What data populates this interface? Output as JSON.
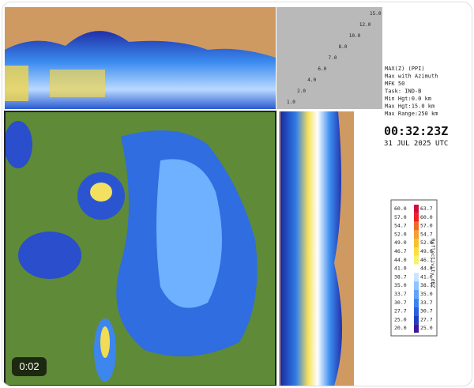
{
  "heights": [
    "1.0",
    "2.0",
    "4.0",
    "6.0",
    "7.0",
    "8.0",
    "10.0",
    "12.0",
    "15.0"
  ],
  "info": {
    "lines": [
      "MAX(Z) (PPI)",
      "Max with Azimuth",
      "MFK 50",
      "Task: IND-B",
      "Min Hgt:0.0 km",
      "Max Hgt:15.0 km",
      "Max Range:250 km"
    ],
    "time": "00:32:23Z",
    "date": "31 JUL 2025 UTC"
  },
  "legend": {
    "title": "Reflectivity dBZ",
    "rows": [
      {
        "low": "60.0",
        "high": "63.7",
        "color": "#d0103a"
      },
      {
        "low": "57.0",
        "high": "60.0",
        "color": "#f0202a"
      },
      {
        "low": "54.7",
        "high": "57.0",
        "color": "#f06a2a"
      },
      {
        "low": "52.0",
        "high": "54.7",
        "color": "#f5a030"
      },
      {
        "low": "49.0",
        "high": "52.0",
        "color": "#f8c030"
      },
      {
        "low": "46.7",
        "high": "49.0",
        "color": "#f8e040"
      },
      {
        "low": "44.0",
        "high": "46.7",
        "color": "#f8f070"
      },
      {
        "low": "41.0",
        "high": "44.0",
        "color": "#ffffff"
      },
      {
        "low": "38.7",
        "high": "41.0",
        "color": "#c8e4ff"
      },
      {
        "low": "35.0",
        "high": "38.7",
        "color": "#90c4ff"
      },
      {
        "low": "33.7",
        "high": "35.0",
        "color": "#60a4f8"
      },
      {
        "low": "30.7",
        "high": "33.7",
        "color": "#3a84f0"
      },
      {
        "low": "27.7",
        "high": "30.7",
        "color": "#2a60e0"
      },
      {
        "low": "25.0",
        "high": "27.7",
        "color": "#2040c0"
      },
      {
        "low": "20.0",
        "high": "25.0",
        "color": "#3a1a9a"
      }
    ]
  },
  "video": {
    "time": "0:02"
  }
}
